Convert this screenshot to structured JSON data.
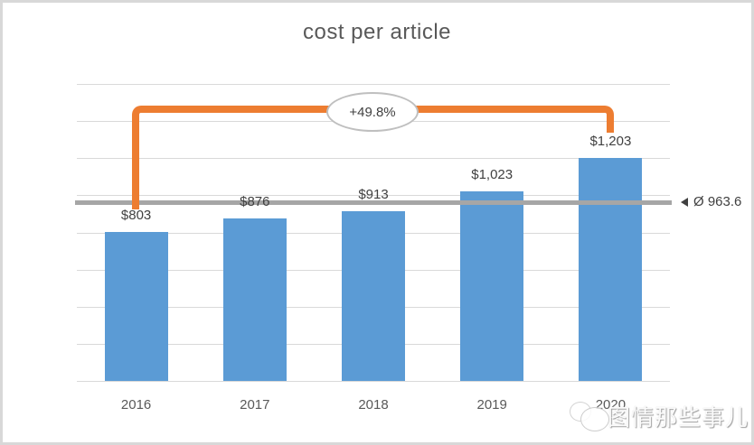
{
  "chart_data": {
    "type": "bar",
    "title": "cost per article",
    "categories": [
      "2016",
      "2017",
      "2018",
      "2019",
      "2020"
    ],
    "values": [
      803,
      876,
      913,
      1023,
      1203
    ],
    "data_labels": [
      "$803",
      "$876",
      "$913",
      "$1,023",
      "$1,203"
    ],
    "xlabel": "",
    "ylabel": "",
    "ylim": [
      0,
      1600
    ],
    "gridline_step": 200,
    "grid": true,
    "legend": "none",
    "y_axis_labels_visible": false,
    "average": 963.6,
    "average_label": "Ø 963.6",
    "growth_annotation": "+49.8%",
    "growth_from_category": "2016",
    "growth_to_category": "2020",
    "colors": {
      "bar": "#5B9BD5",
      "average_line": "#A6A6A6",
      "bracket": "#ED7D31",
      "bubble_border": "#BFBFBF",
      "gridline": "#D9D9D9",
      "title_text": "#595959",
      "label_text": "#404040"
    }
  },
  "watermark": {
    "icon": "speech-bubbles-icon",
    "text": "图情那些事儿"
  }
}
